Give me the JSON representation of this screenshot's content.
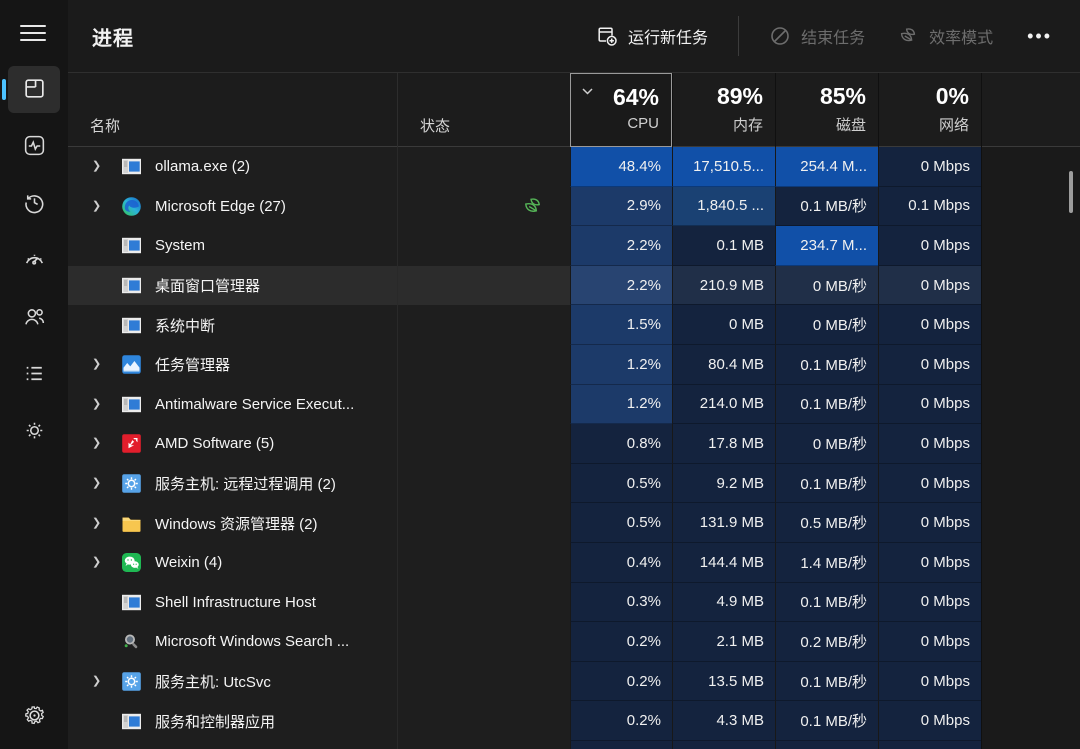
{
  "colors": {
    "accent": "#4cc2ff",
    "leaf_green": "#55b457",
    "heat_low": "#14233e",
    "heat_medium": "#1c3a69",
    "heat_high": "#1150a8",
    "selected_row": "#2c2c2c"
  },
  "sidebar": {
    "items": [
      {
        "id": "processes",
        "icon": "processes-icon",
        "selected": true
      },
      {
        "id": "performance",
        "icon": "performance-icon",
        "selected": false
      },
      {
        "id": "app-history",
        "icon": "history-icon",
        "selected": false
      },
      {
        "id": "startup",
        "icon": "gauge-icon",
        "selected": false
      },
      {
        "id": "users",
        "icon": "users-icon",
        "selected": false
      },
      {
        "id": "details",
        "icon": "list-icon",
        "selected": false
      },
      {
        "id": "services",
        "icon": "services-gear-icon",
        "selected": false
      }
    ],
    "settings_icon": "gear-icon"
  },
  "toolbar": {
    "title": "进程",
    "run_new_task": "运行新任务",
    "end_task": "结束任务",
    "efficiency_mode": "效率模式",
    "more": "•••"
  },
  "table": {
    "name_header": "名称",
    "status_header": "状态",
    "metrics": [
      {
        "key": "cpu",
        "percent": "64%",
        "label": "CPU",
        "sorted": true
      },
      {
        "key": "mem",
        "percent": "89%",
        "label": "内存",
        "sorted": false
      },
      {
        "key": "disk",
        "percent": "85%",
        "label": "磁盘",
        "sorted": false
      },
      {
        "key": "net",
        "percent": "0%",
        "label": "网络",
        "sorted": false
      }
    ],
    "rows": [
      {
        "name": "ollama.exe (2)",
        "icon": "window",
        "expandable": true,
        "selected": false,
        "leaf": false,
        "cells": [
          {
            "v": "48.4%",
            "heat": "h2"
          },
          {
            "v": "17,510.5...",
            "heat": "h2"
          },
          {
            "v": "254.4 M...",
            "heat": "h2"
          },
          {
            "v": "0 Mbps",
            "heat": "h0"
          }
        ]
      },
      {
        "name": "Microsoft Edge (27)",
        "icon": "edge",
        "expandable": true,
        "selected": false,
        "leaf": true,
        "cells": [
          {
            "v": "2.9%",
            "heat": "h1"
          },
          {
            "v": "1,840.5 ...",
            "heat": "h1b"
          },
          {
            "v": "0.1 MB/秒",
            "heat": "h0"
          },
          {
            "v": "0.1 Mbps",
            "heat": "h0"
          }
        ]
      },
      {
        "name": "System",
        "icon": "window",
        "expandable": false,
        "selected": false,
        "leaf": false,
        "cells": [
          {
            "v": "2.2%",
            "heat": "h1"
          },
          {
            "v": "0.1 MB",
            "heat": "h0"
          },
          {
            "v": "234.7 M...",
            "heat": "h2"
          },
          {
            "v": "0 Mbps",
            "heat": "h0"
          }
        ]
      },
      {
        "name": "桌面窗口管理器",
        "icon": "window",
        "expandable": false,
        "selected": true,
        "leaf": false,
        "cells": [
          {
            "v": "2.2%",
            "heat": "h1"
          },
          {
            "v": "210.9 MB",
            "heat": "h0"
          },
          {
            "v": "0 MB/秒",
            "heat": "h0"
          },
          {
            "v": "0 Mbps",
            "heat": "h0"
          }
        ]
      },
      {
        "name": "系统中断",
        "icon": "window",
        "expandable": false,
        "selected": false,
        "leaf": false,
        "cells": [
          {
            "v": "1.5%",
            "heat": "h1"
          },
          {
            "v": "0 MB",
            "heat": "h0"
          },
          {
            "v": "0 MB/秒",
            "heat": "h0"
          },
          {
            "v": "0 Mbps",
            "heat": "h0"
          }
        ]
      },
      {
        "name": "任务管理器",
        "icon": "taskmgr",
        "expandable": true,
        "selected": false,
        "leaf": false,
        "cells": [
          {
            "v": "1.2%",
            "heat": "h1"
          },
          {
            "v": "80.4 MB",
            "heat": "h0"
          },
          {
            "v": "0.1 MB/秒",
            "heat": "h0"
          },
          {
            "v": "0 Mbps",
            "heat": "h0"
          }
        ]
      },
      {
        "name": "Antimalware Service Execut...",
        "icon": "window",
        "expandable": true,
        "selected": false,
        "leaf": false,
        "cells": [
          {
            "v": "1.2%",
            "heat": "h1"
          },
          {
            "v": "214.0 MB",
            "heat": "h0"
          },
          {
            "v": "0.1 MB/秒",
            "heat": "h0"
          },
          {
            "v": "0 Mbps",
            "heat": "h0"
          }
        ]
      },
      {
        "name": "AMD Software (5)",
        "icon": "amd",
        "expandable": true,
        "selected": false,
        "leaf": false,
        "cells": [
          {
            "v": "0.8%",
            "heat": "h0"
          },
          {
            "v": "17.8 MB",
            "heat": "h0"
          },
          {
            "v": "0 MB/秒",
            "heat": "h0"
          },
          {
            "v": "0 Mbps",
            "heat": "h0"
          }
        ]
      },
      {
        "name": "服务主机: 远程过程调用 (2)",
        "icon": "gearapp",
        "expandable": true,
        "selected": false,
        "leaf": false,
        "cells": [
          {
            "v": "0.5%",
            "heat": "h0"
          },
          {
            "v": "9.2 MB",
            "heat": "h0"
          },
          {
            "v": "0.1 MB/秒",
            "heat": "h0"
          },
          {
            "v": "0 Mbps",
            "heat": "h0"
          }
        ]
      },
      {
        "name": "Windows 资源管理器 (2)",
        "icon": "folder",
        "expandable": true,
        "selected": false,
        "leaf": false,
        "cells": [
          {
            "v": "0.5%",
            "heat": "h0"
          },
          {
            "v": "131.9 MB",
            "heat": "h0"
          },
          {
            "v": "0.5 MB/秒",
            "heat": "h0"
          },
          {
            "v": "0 Mbps",
            "heat": "h0"
          }
        ]
      },
      {
        "name": "Weixin (4)",
        "icon": "weixin",
        "expandable": true,
        "selected": false,
        "leaf": false,
        "cells": [
          {
            "v": "0.4%",
            "heat": "h0"
          },
          {
            "v": "144.4 MB",
            "heat": "h0"
          },
          {
            "v": "1.4 MB/秒",
            "heat": "h0"
          },
          {
            "v": "0 Mbps",
            "heat": "h0"
          }
        ]
      },
      {
        "name": "Shell Infrastructure Host",
        "icon": "window",
        "expandable": false,
        "selected": false,
        "leaf": false,
        "cells": [
          {
            "v": "0.3%",
            "heat": "h0"
          },
          {
            "v": "4.9 MB",
            "heat": "h0"
          },
          {
            "v": "0.1 MB/秒",
            "heat": "h0"
          },
          {
            "v": "0 Mbps",
            "heat": "h0"
          }
        ]
      },
      {
        "name": "Microsoft Windows Search ...",
        "icon": "search",
        "expandable": false,
        "selected": false,
        "leaf": false,
        "cells": [
          {
            "v": "0.2%",
            "heat": "h0"
          },
          {
            "v": "2.1 MB",
            "heat": "h0"
          },
          {
            "v": "0.2 MB/秒",
            "heat": "h0"
          },
          {
            "v": "0 Mbps",
            "heat": "h0"
          }
        ]
      },
      {
        "name": "服务主机: UtcSvc",
        "icon": "gearapp",
        "expandable": true,
        "selected": false,
        "leaf": false,
        "cells": [
          {
            "v": "0.2%",
            "heat": "h0"
          },
          {
            "v": "13.5 MB",
            "heat": "h0"
          },
          {
            "v": "0.1 MB/秒",
            "heat": "h0"
          },
          {
            "v": "0 Mbps",
            "heat": "h0"
          }
        ]
      },
      {
        "name": "服务和控制器应用",
        "icon": "window",
        "expandable": false,
        "selected": false,
        "leaf": false,
        "cells": [
          {
            "v": "0.2%",
            "heat": "h0"
          },
          {
            "v": "4.3 MB",
            "heat": "h0"
          },
          {
            "v": "0.1 MB/秒",
            "heat": "h0"
          },
          {
            "v": "0 Mbps",
            "heat": "h0"
          }
        ]
      },
      {
        "name": "",
        "icon": null,
        "expandable": false,
        "selected": false,
        "leaf": false,
        "cells": [
          {
            "v": "",
            "heat": "h0"
          },
          {
            "v": "",
            "heat": "h0"
          },
          {
            "v": "",
            "heat": "h0"
          },
          {
            "v": "",
            "heat": "h0"
          }
        ]
      }
    ]
  }
}
